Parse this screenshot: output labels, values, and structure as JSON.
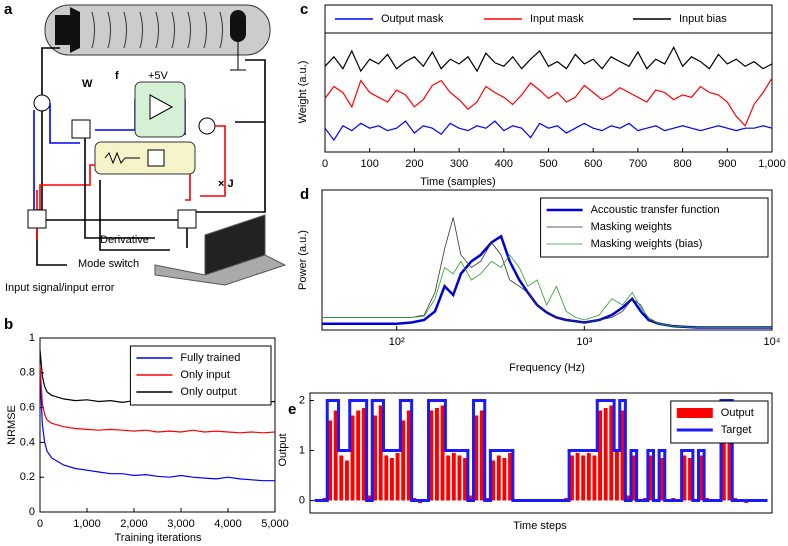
{
  "diagram": {
    "panel_label": "a",
    "labels": {
      "w": "W",
      "f": "f",
      "supply": "+5V",
      "times_j": "× J",
      "derivative": "Derivative",
      "mode_switch": "Mode switch",
      "input": "Input signal/input error"
    }
  },
  "chart_data": [
    {
      "type": "line",
      "panel_label": "b",
      "ylabel": "NRMSE",
      "xlabel": "Training iterations",
      "legend": "upper right",
      "x": [
        0,
        50,
        100,
        150,
        250,
        500,
        750,
        1000,
        1250,
        1500,
        1750,
        2000,
        2250,
        2500,
        2750,
        3000,
        3250,
        3500,
        3750,
        4000,
        4250,
        4500,
        4750,
        5000
      ],
      "xlim": [
        0,
        5000
      ],
      "xticks": [
        0,
        {
          "value": 1000,
          "label": "1,000"
        },
        {
          "value": 2000,
          "label": "2,000"
        },
        {
          "value": 3000,
          "label": "3,000"
        },
        {
          "value": 4000,
          "label": "4,000"
        },
        {
          "value": 5000,
          "label": "5,000"
        }
      ],
      "ylim": [
        0,
        1
      ],
      "yticks": [
        0,
        0.2,
        0.4,
        0.6,
        0.8,
        1
      ],
      "series": [
        {
          "name": "Fully trained",
          "color": "#0000ff",
          "values": [
            0.8,
            0.5,
            0.4,
            0.35,
            0.31,
            0.27,
            0.25,
            0.24,
            0.23,
            0.22,
            0.22,
            0.21,
            0.215,
            0.205,
            0.2,
            0.21,
            0.2,
            0.195,
            0.19,
            0.2,
            0.19,
            0.185,
            0.18,
            0.18
          ]
        },
        {
          "name": "Only input",
          "color": "#ff0000",
          "values": [
            0.85,
            0.62,
            0.56,
            0.53,
            0.51,
            0.49,
            0.48,
            0.475,
            0.47,
            0.475,
            0.47,
            0.465,
            0.47,
            0.46,
            0.465,
            0.46,
            0.47,
            0.46,
            0.465,
            0.46,
            0.455,
            0.46,
            0.455,
            0.46
          ]
        },
        {
          "name": "Only output",
          "color": "#000000",
          "values": [
            0.93,
            0.78,
            0.72,
            0.69,
            0.67,
            0.65,
            0.64,
            0.645,
            0.635,
            0.64,
            0.63,
            0.64,
            0.635,
            0.63,
            0.64,
            0.635,
            0.63,
            0.64,
            0.63,
            0.635,
            0.63,
            0.64,
            0.63,
            0.635
          ]
        }
      ]
    },
    {
      "type": "line",
      "panel_label": "c",
      "ylabel": "Weight (a.u.)",
      "xlabel": "Time (samples)",
      "legend": "top",
      "x": [
        0,
        20,
        40,
        60,
        80,
        100,
        120,
        140,
        160,
        180,
        200,
        220,
        240,
        260,
        280,
        300,
        320,
        340,
        360,
        380,
        400,
        420,
        440,
        460,
        480,
        500,
        520,
        540,
        560,
        580,
        600,
        620,
        640,
        660,
        680,
        700,
        720,
        740,
        760,
        780,
        800,
        820,
        840,
        860,
        880,
        900,
        920,
        940,
        960,
        980,
        1000
      ],
      "xlim": [
        0,
        1000
      ],
      "xticks": [
        0,
        100,
        200,
        300,
        400,
        500,
        600,
        700,
        800,
        900,
        {
          "value": 1000,
          "label": "1,000"
        }
      ],
      "ylim": [
        0,
        1
      ],
      "series": [
        {
          "name": "Output mask",
          "color": "#0000ff",
          "values": [
            0.2,
            0.1,
            0.22,
            0.18,
            0.24,
            0.2,
            0.22,
            0.18,
            0.2,
            0.26,
            0.16,
            0.22,
            0.2,
            0.15,
            0.24,
            0.2,
            0.18,
            0.22,
            0.2,
            0.26,
            0.18,
            0.22,
            0.2,
            0.12,
            0.24,
            0.2,
            0.22,
            0.16,
            0.2,
            0.24,
            0.2,
            0.18,
            0.22,
            0.2,
            0.24,
            0.18,
            0.2,
            0.22,
            0.18,
            0.2,
            0.22,
            0.2,
            0.18,
            0.2,
            0.22,
            0.2,
            0.18,
            0.2,
            0.2,
            0.22,
            0.2
          ]
        },
        {
          "name": "Input mask",
          "color": "#ff0000",
          "values": [
            0.45,
            0.55,
            0.5,
            0.38,
            0.6,
            0.5,
            0.46,
            0.42,
            0.52,
            0.48,
            0.38,
            0.44,
            0.56,
            0.6,
            0.5,
            0.44,
            0.36,
            0.42,
            0.55,
            0.5,
            0.46,
            0.4,
            0.48,
            0.58,
            0.52,
            0.45,
            0.5,
            0.42,
            0.46,
            0.56,
            0.5,
            0.44,
            0.48,
            0.54,
            0.5,
            0.46,
            0.42,
            0.52,
            0.5,
            0.44,
            0.48,
            0.46,
            0.55,
            0.5,
            0.48,
            0.42,
            0.3,
            0.22,
            0.4,
            0.5,
            0.62
          ]
        },
        {
          "name": "Input bias",
          "color": "#000000",
          "values": [
            0.72,
            0.8,
            0.7,
            0.85,
            0.68,
            0.78,
            0.74,
            0.82,
            0.7,
            0.76,
            0.8,
            0.72,
            0.84,
            0.7,
            0.78,
            0.74,
            0.8,
            0.68,
            0.83,
            0.75,
            0.72,
            0.8,
            0.7,
            0.78,
            0.85,
            0.72,
            0.76,
            0.7,
            0.82,
            0.74,
            0.78,
            0.7,
            0.8,
            0.76,
            0.72,
            0.84,
            0.7,
            0.78,
            0.74,
            0.88,
            0.72,
            0.8,
            0.76,
            0.7,
            0.82,
            0.74,
            0.78,
            0.72,
            0.76,
            0.7,
            0.74
          ]
        }
      ]
    },
    {
      "type": "line",
      "panel_label": "d",
      "ylabel": "Power (a.u.)",
      "xlabel": "Frequency (Hz)",
      "legend": "upper right",
      "xscale": "log",
      "x": [
        40,
        60,
        80,
        100,
        120,
        140,
        160,
        180,
        200,
        220,
        250,
        280,
        320,
        360,
        400,
        450,
        500,
        560,
        630,
        710,
        800,
        900,
        1000,
        1200,
        1400,
        1600,
        1800,
        2000,
        2200,
        2500,
        3000,
        4000,
        6000,
        10000
      ],
      "xlim": [
        40,
        10000
      ],
      "xticks": [
        {
          "value": 100,
          "label": "10²"
        },
        {
          "value": 1000,
          "label": "10³"
        },
        {
          "value": 10000,
          "label": "10⁴"
        }
      ],
      "ylim": [
        0,
        1
      ],
      "series": [
        {
          "name": "Accoustic transfer function",
          "color": "#0000dd",
          "linewidth": 2.5,
          "values": [
            0.05,
            0.05,
            0.05,
            0.05,
            0.06,
            0.08,
            0.15,
            0.35,
            0.28,
            0.45,
            0.55,
            0.6,
            0.7,
            0.75,
            0.55,
            0.4,
            0.3,
            0.2,
            0.14,
            0.1,
            0.08,
            0.07,
            0.06,
            0.08,
            0.12,
            0.18,
            0.25,
            0.15,
            0.08,
            0.05,
            0.03,
            0.02,
            0.02,
            0.02
          ]
        },
        {
          "name": "Masking weights",
          "color": "#333333",
          "linewidth": 0.8,
          "values": [
            0.1,
            0.1,
            0.1,
            0.1,
            0.1,
            0.12,
            0.3,
            0.65,
            0.9,
            0.6,
            0.5,
            0.55,
            0.7,
            0.6,
            0.4,
            0.35,
            0.3,
            0.2,
            0.15,
            0.1,
            0.08,
            0.07,
            0.06,
            0.08,
            0.1,
            0.15,
            0.25,
            0.2,
            0.08,
            0.05,
            0.03,
            0.02,
            0.02,
            0.02
          ]
        },
        {
          "name": "Masking weights (bias)",
          "color": "#2ca02c",
          "linewidth": 0.8,
          "values": [
            0.1,
            0.1,
            0.1,
            0.1,
            0.1,
            0.11,
            0.25,
            0.5,
            0.45,
            0.55,
            0.4,
            0.45,
            0.55,
            0.5,
            0.6,
            0.5,
            0.35,
            0.4,
            0.2,
            0.35,
            0.15,
            0.1,
            0.08,
            0.12,
            0.25,
            0.2,
            0.3,
            0.18,
            0.1,
            0.05,
            0.03,
            0.02,
            0.02,
            0.02
          ]
        }
      ]
    },
    {
      "type": "bar",
      "panel_label": "e",
      "ylabel": "Output",
      "xlabel": "Time steps",
      "legend": "upper right",
      "ylim": [
        -0.25,
        2.15
      ],
      "yticks": [
        0,
        1,
        2
      ],
      "series": [
        {
          "name": "Output",
          "color": "#ff0000",
          "kind": "bar",
          "values": [
            0,
            0.05,
            1.6,
            1.8,
            0.9,
            0.8,
            1.7,
            1.8,
            1.85,
            0.1,
            1.7,
            1.9,
            0.9,
            0.85,
            0.95,
            1.6,
            1.8,
            0.05,
            -0.05,
            0,
            1.8,
            1.85,
            1.9,
            0.9,
            0.95,
            0.9,
            0.85,
            0.1,
            1.7,
            1.8,
            0.05,
            0.8,
            0.9,
            0.85,
            0.95,
            0,
            0.02,
            -0.03,
            0,
            0.02,
            0,
            0.03,
            -0.02,
            0,
            0.05,
            0.9,
            0.95,
            0.9,
            0.95,
            0.9,
            1.8,
            1.85,
            1.9,
            1,
            1.8,
            0.1,
            0.9,
            0,
            0.05,
            0.9,
            0,
            0.85,
            0,
            0.05,
            0,
            0.9,
            0.85,
            0,
            0.9,
            0.05,
            0,
            0,
            1.6,
            1.8,
            0.05,
            0,
            -0.05,
            0.03,
            0,
            0
          ]
        },
        {
          "name": "Target",
          "color": "#1a1aff",
          "kind": "step",
          "values": [
            0,
            0,
            2,
            2,
            1,
            1,
            2,
            2,
            2,
            0,
            2,
            2,
            1,
            1,
            1,
            2,
            2,
            0,
            0,
            0,
            2,
            2,
            2,
            1,
            1,
            1,
            1,
            0,
            2,
            2,
            0,
            1,
            1,
            1,
            1,
            0,
            0,
            0,
            0,
            0,
            0,
            0,
            0,
            0,
            0,
            1,
            1,
            1,
            1,
            1,
            2,
            2,
            2,
            1,
            2,
            0,
            1,
            0,
            0,
            1,
            0,
            1,
            0,
            0,
            0,
            1,
            1,
            0,
            1,
            0,
            0,
            0,
            2,
            2,
            0,
            0,
            0,
            0,
            0,
            0
          ]
        }
      ]
    }
  ]
}
